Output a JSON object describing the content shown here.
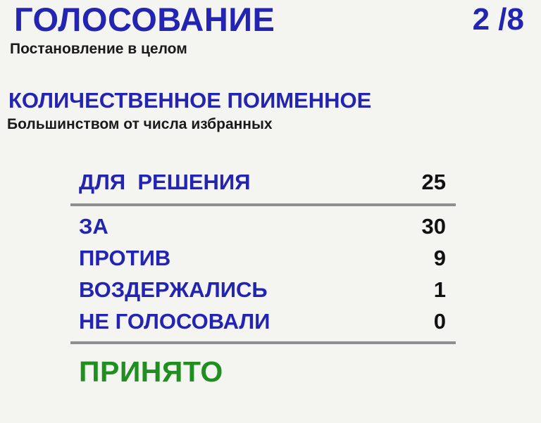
{
  "colors": {
    "heading_blue": "#2424b2",
    "value_black": "#111111",
    "result_green": "#1f8f1f",
    "separator_gray": "#8f8f8f",
    "background": "#f4f4f0"
  },
  "header": {
    "title": "ГОЛОСОВАНИЕ",
    "counter": "2 /8",
    "subtitle": "Постановление в целом"
  },
  "section": {
    "title": "КОЛИЧЕСТВЕННОЕ ПОИМЕННОЕ",
    "subtitle": "Большинством от числа избранных"
  },
  "table": {
    "quorum_row": {
      "label": "ДЛЯ  РЕШЕНИЯ",
      "value": "25"
    },
    "rows": [
      {
        "label": "ЗА",
        "value": "30"
      },
      {
        "label": "ПРОТИВ",
        "value": "9"
      },
      {
        "label": "ВОЗДЕРЖАЛИСЬ",
        "value": "1"
      },
      {
        "label": "НЕ ГОЛОСОВАЛИ",
        "value": "0"
      }
    ]
  },
  "result": {
    "label": "ПРИНЯТО"
  }
}
